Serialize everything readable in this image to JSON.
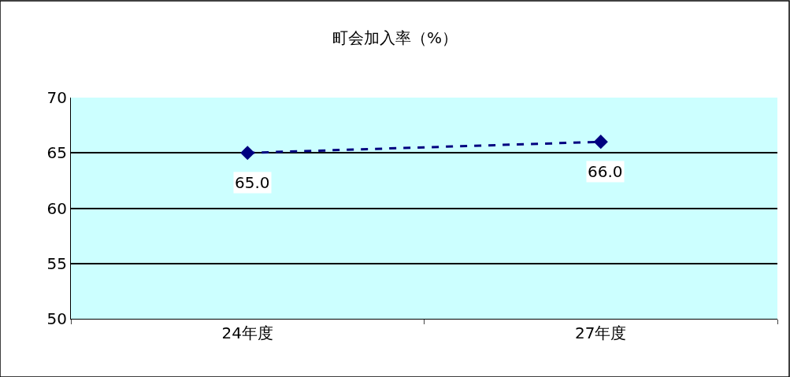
{
  "chart_data": {
    "type": "line",
    "title": "町会加入率（%）",
    "categories": [
      "24年度",
      "27年度"
    ],
    "series": [
      {
        "color": "#000080",
        "values": [
          65,
          66
        ],
        "value_labels": [
          "65.0",
          "66.0"
        ]
      }
    ],
    "ylim": [
      50,
      70
    ],
    "yticks": [
      50,
      55,
      60,
      65,
      70
    ],
    "grid": "y",
    "marker": "diamond",
    "line_style": "dashed",
    "legend": false
  }
}
